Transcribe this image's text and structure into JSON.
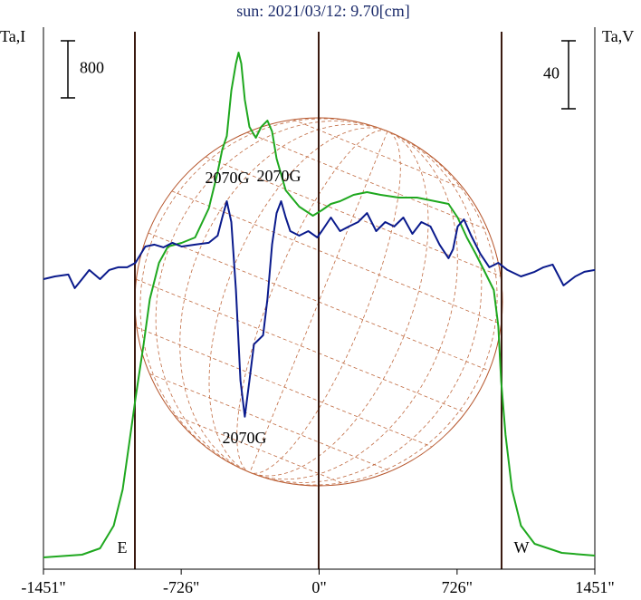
{
  "chart_data": {
    "type": "line",
    "title": "sun: 2021/03/12: 9.70[cm]",
    "xlim": [
      -1451,
      1451
    ],
    "xticks": [
      {
        "value": -1451,
        "label": "-1451\""
      },
      {
        "value": -726,
        "label": "-726\""
      },
      {
        "value": 0,
        "label": "0\""
      },
      {
        "value": 726,
        "label": "726\""
      },
      {
        "value": 1451,
        "label": "1451\""
      }
    ],
    "ylim": [
      -165,
      7430
    ],
    "y2lim": [
      -175,
      144
    ],
    "scale_bars": [
      {
        "value": 800
      },
      {
        "value": 40,
        "axis": "y2"
      }
    ],
    "limb_labels": [
      "E",
      "W"
    ],
    "annotations": [
      "2070G",
      "2070G",
      "2070G"
    ],
    "series": [
      {
        "name": "Ta,I",
        "color": "#1fa81f",
        "x": [
          -1451,
          -1248,
          -1153,
          -1081,
          -1034,
          -1000,
          -967,
          -924,
          -891,
          -843,
          -796,
          -724,
          -653,
          -581,
          -534,
          -510,
          -486,
          -462,
          -438,
          -424,
          -410,
          -391,
          -367,
          -333,
          -305,
          -272,
          -248,
          -224,
          -176,
          -105,
          -33,
          14,
          62,
          110,
          181,
          252,
          324,
          419,
          515,
          610,
          681,
          729,
          777,
          824,
          872,
          919,
          943,
          958,
          981,
          1015,
          1062,
          1134,
          1277,
          1451
        ],
        "values": [
          0,
          38,
          127,
          445,
          953,
          1588,
          2223,
          2985,
          3620,
          4128,
          4356,
          4407,
          4483,
          4890,
          5398,
          5715,
          5905,
          6540,
          6921,
          7074,
          6921,
          6414,
          6033,
          5880,
          6033,
          6121,
          5969,
          5588,
          5144,
          4915,
          4788,
          4864,
          4953,
          4991,
          5080,
          5118,
          5080,
          5042,
          5042,
          4991,
          4953,
          4763,
          4483,
          4255,
          4001,
          3747,
          3239,
          2477,
          1715,
          953,
          445,
          191,
          64,
          25
        ]
      },
      {
        "name": "Ta,V",
        "color": "#0a1a8c",
        "axis": "y2",
        "x": [
          -1451,
          -1391,
          -1320,
          -1286,
          -1248,
          -1210,
          -1153,
          -1105,
          -1058,
          -1010,
          -967,
          -915,
          -867,
          -819,
          -772,
          -724,
          -653,
          -581,
          -534,
          -510,
          -486,
          -462,
          -438,
          -414,
          -391,
          -367,
          -343,
          -319,
          -295,
          -272,
          -248,
          -224,
          -200,
          -176,
          -152,
          -105,
          -57,
          -10,
          14,
          62,
          110,
          157,
          205,
          252,
          300,
          348,
          395,
          443,
          491,
          538,
          586,
          634,
          681,
          705,
          729,
          762,
          800,
          848,
          896,
          943,
          991,
          1062,
          1134,
          1181,
          1229,
          1286,
          1348,
          1396,
          1451
        ],
        "values": [
          -4.3,
          -2.7,
          -1.6,
          -9.6,
          -4.3,
          1.1,
          -4.3,
          1.1,
          2.7,
          2.7,
          5.3,
          14.9,
          16.0,
          14.4,
          17.1,
          14.9,
          16.0,
          17.1,
          21.3,
          32.0,
          41.6,
          29.3,
          -10.7,
          -64.0,
          -85.3,
          -64.0,
          -42.6,
          -40.0,
          -37.3,
          -16.0,
          16.0,
          34.6,
          41.6,
          32.0,
          24.0,
          21.3,
          24.0,
          20.3,
          24.0,
          32.0,
          24.0,
          26.7,
          29.3,
          34.6,
          24.0,
          29.3,
          26.7,
          32.0,
          22.4,
          29.3,
          26.7,
          16.0,
          8.0,
          13.3,
          26.7,
          30.9,
          21.3,
          10.7,
          2.7,
          5.3,
          1.1,
          -2.7,
          0,
          2.7,
          4.3,
          -8.0,
          -2.7,
          0,
          1.1
        ]
      }
    ]
  }
}
